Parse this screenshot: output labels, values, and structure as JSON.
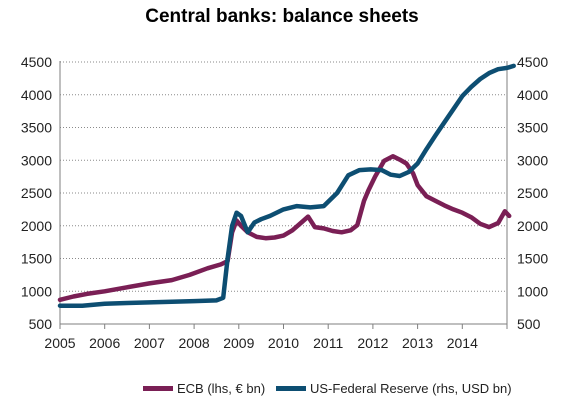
{
  "chart_data": {
    "type": "line",
    "title": "Central banks: balance sheets",
    "x_ticks": [
      "2005",
      "2006",
      "2007",
      "2008",
      "2009",
      "2010",
      "2011",
      "2012",
      "2013",
      "2014"
    ],
    "y_left_ticks": [
      "500",
      "1000",
      "1500",
      "2000",
      "2500",
      "3000",
      "3500",
      "4000",
      "4500"
    ],
    "y_right_ticks": [
      "500",
      "1000",
      "1500",
      "2000",
      "2500",
      "3000",
      "3500",
      "4000",
      "4500"
    ],
    "ylim_left": [
      500,
      4500
    ],
    "ylim_right": [
      500,
      4500
    ],
    "xlim": [
      2005,
      2015
    ],
    "grid": "horizontal dotted",
    "legend_position": "bottom",
    "series": [
      {
        "name": "ECB (lhs, € bn)",
        "axis": "left",
        "color": "#7a1f55",
        "points": [
          [
            2005.0,
            870
          ],
          [
            2005.3,
            920
          ],
          [
            2005.6,
            960
          ],
          [
            2006.0,
            1000
          ],
          [
            2006.5,
            1060
          ],
          [
            2007.0,
            1120
          ],
          [
            2007.5,
            1170
          ],
          [
            2007.9,
            1250
          ],
          [
            2008.3,
            1350
          ],
          [
            2008.6,
            1410
          ],
          [
            2008.75,
            1460
          ],
          [
            2008.85,
            1900
          ],
          [
            2008.95,
            2080
          ],
          [
            2009.05,
            2000
          ],
          [
            2009.2,
            1900
          ],
          [
            2009.4,
            1830
          ],
          [
            2009.6,
            1810
          ],
          [
            2009.8,
            1820
          ],
          [
            2010.0,
            1850
          ],
          [
            2010.2,
            1930
          ],
          [
            2010.4,
            2050
          ],
          [
            2010.55,
            2140
          ],
          [
            2010.7,
            1980
          ],
          [
            2010.9,
            1960
          ],
          [
            2011.1,
            1920
          ],
          [
            2011.3,
            1900
          ],
          [
            2011.5,
            1930
          ],
          [
            2011.65,
            2010
          ],
          [
            2011.8,
            2380
          ],
          [
            2011.9,
            2540
          ],
          [
            2012.05,
            2750
          ],
          [
            2012.25,
            2990
          ],
          [
            2012.45,
            3060
          ],
          [
            2012.6,
            3010
          ],
          [
            2012.75,
            2950
          ],
          [
            2012.9,
            2800
          ],
          [
            2013.0,
            2620
          ],
          [
            2013.2,
            2450
          ],
          [
            2013.4,
            2380
          ],
          [
            2013.6,
            2310
          ],
          [
            2013.8,
            2250
          ],
          [
            2014.0,
            2200
          ],
          [
            2014.2,
            2130
          ],
          [
            2014.4,
            2030
          ],
          [
            2014.6,
            1980
          ],
          [
            2014.8,
            2040
          ],
          [
            2014.95,
            2220
          ],
          [
            2015.05,
            2150
          ]
        ]
      },
      {
        "name": "US-Federal Reserve (rhs, USD bn)",
        "axis": "right",
        "color": "#0d4e72",
        "points": [
          [
            2005.0,
            780
          ],
          [
            2005.5,
            780
          ],
          [
            2006.0,
            810
          ],
          [
            2006.5,
            820
          ],
          [
            2007.0,
            830
          ],
          [
            2007.5,
            840
          ],
          [
            2008.0,
            850
          ],
          [
            2008.5,
            860
          ],
          [
            2008.65,
            900
          ],
          [
            2008.75,
            1500
          ],
          [
            2008.85,
            2000
          ],
          [
            2008.95,
            2200
          ],
          [
            2009.05,
            2150
          ],
          [
            2009.2,
            1900
          ],
          [
            2009.35,
            2050
          ],
          [
            2009.5,
            2100
          ],
          [
            2009.7,
            2150
          ],
          [
            2010.0,
            2250
          ],
          [
            2010.3,
            2300
          ],
          [
            2010.6,
            2280
          ],
          [
            2010.9,
            2300
          ],
          [
            2011.2,
            2500
          ],
          [
            2011.45,
            2770
          ],
          [
            2011.7,
            2850
          ],
          [
            2011.95,
            2860
          ],
          [
            2012.2,
            2850
          ],
          [
            2012.4,
            2780
          ],
          [
            2012.6,
            2760
          ],
          [
            2012.8,
            2820
          ],
          [
            2013.0,
            2950
          ],
          [
            2013.2,
            3170
          ],
          [
            2013.4,
            3380
          ],
          [
            2013.6,
            3580
          ],
          [
            2013.8,
            3780
          ],
          [
            2014.0,
            3980
          ],
          [
            2014.2,
            4120
          ],
          [
            2014.4,
            4240
          ],
          [
            2014.6,
            4330
          ],
          [
            2014.8,
            4390
          ],
          [
            2015.0,
            4410
          ],
          [
            2015.15,
            4440
          ]
        ]
      }
    ]
  }
}
